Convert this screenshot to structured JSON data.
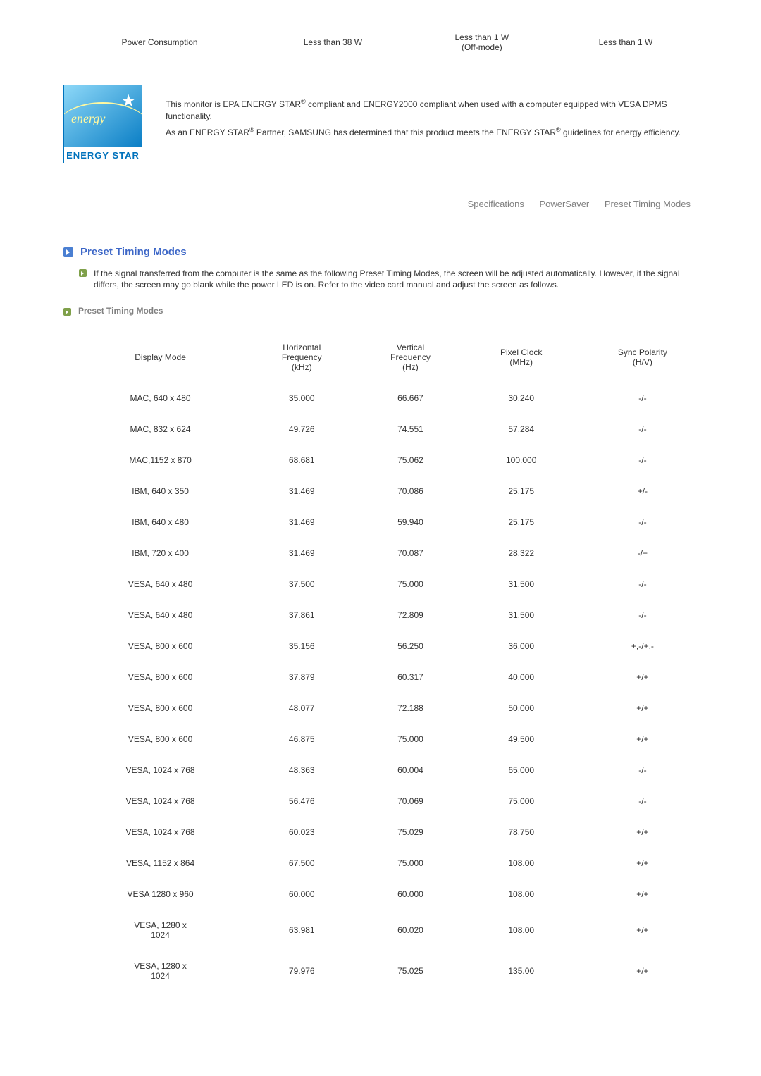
{
  "power_row": {
    "label": "Power Consumption",
    "c1": "Less than 38 W",
    "c2_line1": "Less than 1 W",
    "c2_line2": "(Off-mode)",
    "c3": "Less than 1 W"
  },
  "energy_logo": {
    "script": "energy",
    "band": "ENERGY STAR"
  },
  "energy_text": {
    "line1a": "This monitor is EPA ENERGY STAR",
    "line1b": " compliant and ENERGY2000 compliant when used with a computer equipped with VESA DPMS functionality.",
    "line2a": "As an ENERGY STAR",
    "line2b": " Partner, SAMSUNG has determined that this product meets the ENERGY STAR",
    "line2c": " guidelines for energy efficiency.",
    "reg": "®"
  },
  "tabs": {
    "t1": "Specifications",
    "t2": "PowerSaver",
    "t3": "Preset Timing Modes"
  },
  "section_title": "Preset Timing Modes",
  "note_text": "If the signal transferred from the computer is the same as the following Preset Timing Modes, the screen will be adjusted automatically. However, if the signal differs, the screen may go blank while the power LED is on. Refer to the video card manual and adjust the screen as follows.",
  "subhead": "Preset Timing Modes",
  "timing_table": {
    "headers": {
      "c0": "Display Mode",
      "c1_l1": "Horizontal",
      "c1_l2": "Frequency",
      "c1_l3": "(kHz)",
      "c2_l1": "Vertical",
      "c2_l2": "Frequency",
      "c2_l3": "(Hz)",
      "c3_l1": "Pixel Clock",
      "c3_l2": "(MHz)",
      "c4_l1": "Sync Polarity",
      "c4_l2": "(H/V)"
    },
    "rows": [
      {
        "mode": "MAC, 640 x 480",
        "hf": "35.000",
        "vf": "66.667",
        "pc": "30.240",
        "sp": "-/-"
      },
      {
        "mode": "MAC, 832 x 624",
        "hf": "49.726",
        "vf": "74.551",
        "pc": "57.284",
        "sp": "-/-"
      },
      {
        "mode": "MAC,1152 x 870",
        "hf": "68.681",
        "vf": "75.062",
        "pc": "100.000",
        "sp": "-/-"
      },
      {
        "mode": "IBM, 640 x 350",
        "hf": "31.469",
        "vf": "70.086",
        "pc": "25.175",
        "sp": "+/-"
      },
      {
        "mode": "IBM, 640 x 480",
        "hf": "31.469",
        "vf": "59.940",
        "pc": "25.175",
        "sp": "-/-"
      },
      {
        "mode": "IBM, 720 x 400",
        "hf": "31.469",
        "vf": "70.087",
        "pc": "28.322",
        "sp": "-/+"
      },
      {
        "mode": "VESA, 640 x 480",
        "hf": "37.500",
        "vf": "75.000",
        "pc": "31.500",
        "sp": "-/-"
      },
      {
        "mode": "VESA, 640 x 480",
        "hf": "37.861",
        "vf": "72.809",
        "pc": "31.500",
        "sp": "-/-"
      },
      {
        "mode": "VESA, 800 x 600",
        "hf": "35.156",
        "vf": "56.250",
        "pc": "36.000",
        "sp": "+,-/+,-"
      },
      {
        "mode": "VESA, 800 x 600",
        "hf": "37.879",
        "vf": "60.317",
        "pc": "40.000",
        "sp": "+/+"
      },
      {
        "mode": "VESA, 800 x 600",
        "hf": "48.077",
        "vf": "72.188",
        "pc": "50.000",
        "sp": "+/+"
      },
      {
        "mode": "VESA, 800 x 600",
        "hf": "46.875",
        "vf": "75.000",
        "pc": "49.500",
        "sp": "+/+"
      },
      {
        "mode": "VESA, 1024 x 768",
        "hf": "48.363",
        "vf": "60.004",
        "pc": "65.000",
        "sp": "-/-"
      },
      {
        "mode": "VESA, 1024 x 768",
        "hf": "56.476",
        "vf": "70.069",
        "pc": "75.000",
        "sp": "-/-"
      },
      {
        "mode": "VESA, 1024 x 768",
        "hf": "60.023",
        "vf": "75.029",
        "pc": "78.750",
        "sp": "+/+"
      },
      {
        "mode": "VESA, 1152 x 864",
        "hf": "67.500",
        "vf": "75.000",
        "pc": "108.00",
        "sp": "+/+"
      },
      {
        "mode": "VESA 1280 x 960",
        "hf": "60.000",
        "vf": "60.000",
        "pc": "108.00",
        "sp": "+/+"
      },
      {
        "mode": "VESA, 1280 x 1024",
        "hf": "63.981",
        "vf": "60.020",
        "pc": "108.00",
        "sp": "+/+"
      },
      {
        "mode": "VESA, 1280 x 1024",
        "hf": "79.976",
        "vf": "75.025",
        "pc": "135.00",
        "sp": "+/+"
      }
    ]
  }
}
